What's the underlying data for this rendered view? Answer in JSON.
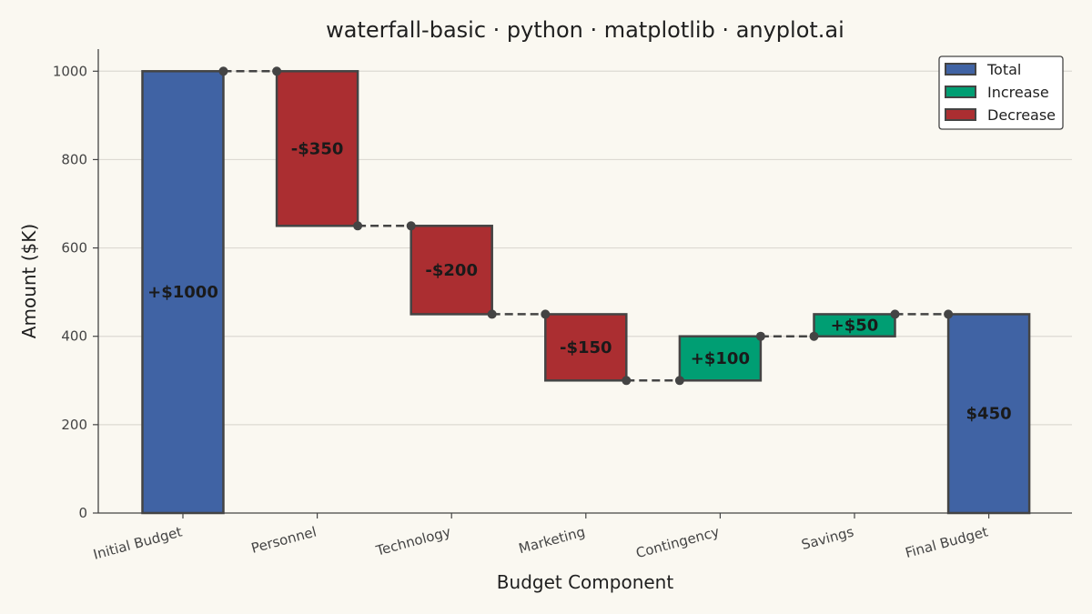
{
  "chart_data": {
    "type": "waterfall",
    "title": "waterfall-basic · python · matplotlib · anyplot.ai",
    "xlabel": "Budget Component",
    "ylabel": "Amount ($K)",
    "ylim": [
      0,
      1050
    ],
    "yticks": [
      "0",
      "200",
      "400",
      "600",
      "800",
      "1000"
    ],
    "ytick_values": [
      0,
      200,
      400,
      600,
      800,
      1000
    ],
    "grid": "horizontal",
    "legend_position": "top-right",
    "legend": [
      {
        "label": "Total",
        "color": "#4063A4"
      },
      {
        "label": "Increase",
        "color": "#009E73"
      },
      {
        "label": "Decrease",
        "color": "#AB2E31"
      }
    ],
    "categories": [
      "Initial Budget",
      "Personnel",
      "Technology",
      "Marketing",
      "Contingency",
      "Savings",
      "Final Budget"
    ],
    "bars": [
      {
        "category": "Initial Budget",
        "kind": "total",
        "start": 0,
        "end": 1000,
        "label": "+$1000"
      },
      {
        "category": "Personnel",
        "kind": "decrease",
        "start": 1000,
        "end": 650,
        "label": "-$350"
      },
      {
        "category": "Technology",
        "kind": "decrease",
        "start": 650,
        "end": 450,
        "label": "-$200"
      },
      {
        "category": "Marketing",
        "kind": "decrease",
        "start": 450,
        "end": 300,
        "label": "-$150"
      },
      {
        "category": "Contingency",
        "kind": "increase",
        "start": 300,
        "end": 400,
        "label": "+$100"
      },
      {
        "category": "Savings",
        "kind": "increase",
        "start": 400,
        "end": 450,
        "label": "+$50"
      },
      {
        "category": "Final Budget",
        "kind": "total",
        "start": 0,
        "end": 450,
        "label": "$450"
      }
    ],
    "colors": {
      "total": "#4063A4",
      "increase": "#009E73",
      "decrease": "#AB2E31",
      "edge": "#444444",
      "connector": "#444444",
      "grid": "#DDDAD3",
      "background": "#FAF8F1"
    }
  }
}
